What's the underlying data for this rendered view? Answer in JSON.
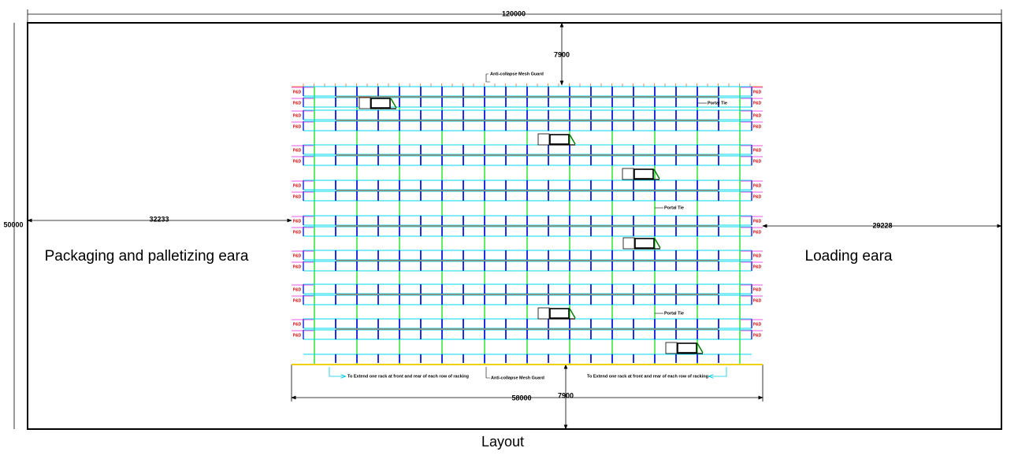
{
  "dimensions": {
    "total_width": 120000,
    "total_depth": 50000,
    "left_clearance": 32233,
    "right_clearance": 29228,
    "rack_width": 58000,
    "top_clearance": 7900,
    "bottom_clearance": 7900
  },
  "areas": {
    "left": "Packaging and palletizing eara",
    "right": "Loading eara"
  },
  "annotations": {
    "mesh_guard_top": "Anti-collapse Mesh Guard",
    "mesh_guard_bottom": "Anti-collapse Mesh Guard",
    "portal_tie_1": "Portal Tie",
    "portal_tie_2": "Portal Tie",
    "portal_tie_3": "Portal Tie",
    "extend_left": "To Extend one rack at front and rear of each row of racking",
    "extend_right": "To Extend one rack at front and rear of each row of racking",
    "pd_label": "P&D"
  },
  "caption": "Layout"
}
